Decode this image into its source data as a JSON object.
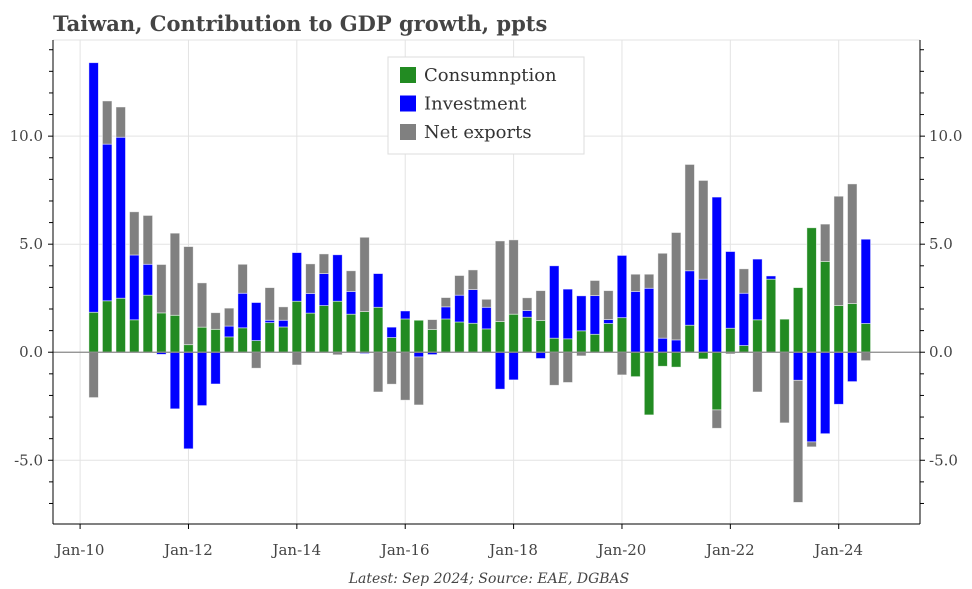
{
  "chart_data": {
    "type": "bar",
    "stacked": true,
    "title": "Taiwan, Contribution to GDP growth, ppts",
    "footnote": "Latest: Sep 2024; Source: EAE, DGBAS",
    "xlabel": "",
    "ylabel": "",
    "ylim": [
      -7.95,
      14.45
    ],
    "xlim": [
      "2009-07",
      "2025-07"
    ],
    "yticks": [
      -5,
      0,
      5,
      10
    ],
    "ytick_labels": [
      "-5.0",
      "0.0",
      "5.0",
      "10.0"
    ],
    "xticks": [
      "2010-01",
      "2012-01",
      "2014-01",
      "2016-01",
      "2018-01",
      "2020-01",
      "2022-01",
      "2024-01"
    ],
    "xtick_labels": [
      "Jan-10",
      "Jan-12",
      "Jan-14",
      "Jan-16",
      "Jan-18",
      "Jan-20",
      "Jan-22",
      "Jan-24"
    ],
    "grid": true,
    "legend_position": "top-center",
    "x_start": "2010-04",
    "x_frequency": "quarterly",
    "series": [
      {
        "name": "Consumnption",
        "color": "#228B22",
        "values": [
          1.85,
          2.38,
          2.5,
          1.5,
          2.64,
          1.82,
          1.71,
          0.35,
          1.16,
          1.06,
          0.71,
          1.13,
          0.54,
          1.37,
          1.17,
          2.36,
          1.81,
          2.16,
          2.36,
          1.76,
          1.88,
          2.08,
          0.68,
          1.54,
          1.48,
          1.05,
          1.54,
          1.4,
          1.34,
          1.08,
          1.42,
          1.76,
          1.62,
          1.47,
          0.65,
          0.62,
          0.99,
          0.83,
          1.33,
          1.6,
          -1.13,
          -2.9,
          -0.65,
          -0.69,
          1.25,
          -0.31,
          -2.67,
          1.11,
          0.31,
          1.5,
          3.38,
          1.53,
          2.99,
          5.76,
          4.2,
          2.16,
          2.25,
          1.33
        ]
      },
      {
        "name": "Investment",
        "color": "#0000FF",
        "values": [
          11.55,
          7.25,
          7.45,
          3.0,
          1.43,
          -0.1,
          -2.62,
          -4.47,
          -2.47,
          -1.47,
          0.5,
          1.6,
          1.76,
          0.11,
          0.31,
          2.25,
          0.91,
          1.48,
          2.15,
          1.05,
          -0.06,
          1.56,
          0.48,
          0.37,
          -0.22,
          -0.11,
          0.56,
          1.24,
          1.56,
          1.0,
          -1.71,
          -1.28,
          0.31,
          -0.29,
          3.35,
          2.3,
          1.62,
          1.79,
          0.18,
          2.88,
          2.81,
          2.96,
          0.65,
          0.57,
          2.52,
          3.38,
          7.18,
          3.55,
          2.42,
          2.81,
          0.15,
          0,
          -1.3,
          -4.15,
          -3.77,
          -2.41,
          -1.36,
          3.9
        ]
      },
      {
        "name": "Net exports",
        "color": "#808080",
        "values": [
          -2.1,
          2.0,
          1.4,
          2.0,
          2.26,
          2.24,
          3.8,
          4.54,
          2.05,
          0.77,
          0.83,
          1.34,
          -0.74,
          1.51,
          0.62,
          -0.59,
          1.37,
          0.91,
          -0.12,
          0.96,
          3.44,
          -1.84,
          -1.48,
          -2.22,
          -2.22,
          0.46,
          0.43,
          0.91,
          0.91,
          0.37,
          3.73,
          3.44,
          0.59,
          1.38,
          -1.53,
          -1.4,
          -0.17,
          0.7,
          1.34,
          -1.05,
          0.8,
          0.65,
          3.93,
          4.97,
          4.92,
          4.57,
          -0.85,
          -0.08,
          1.13,
          -1.84,
          0,
          -3.27,
          -5.65,
          -0.23,
          1.73,
          5.06,
          5.54,
          -0.39
        ]
      }
    ]
  }
}
